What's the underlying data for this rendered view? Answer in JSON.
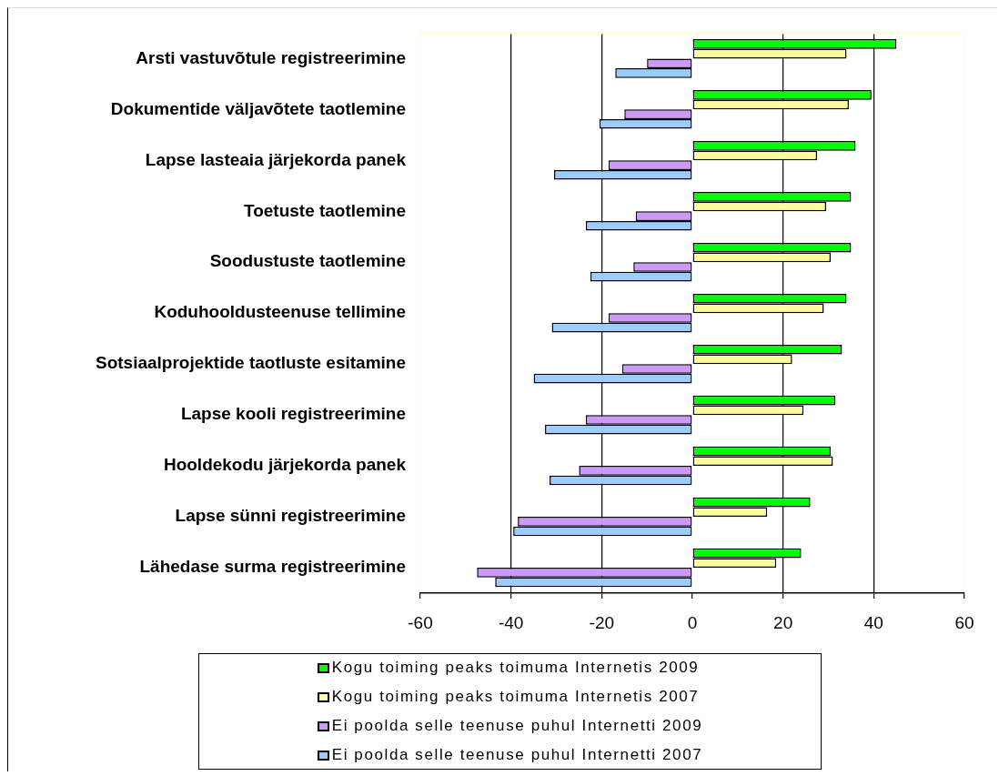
{
  "chart_data": {
    "type": "bar",
    "orientation": "horizontal",
    "categories": [
      "Arsti vastuvõtule registreerimine",
      "Dokumentide väljavõtete taotlemine",
      "Lapse lasteaia järjekorda panek",
      "Toetuste taotlemine",
      "Soodustuste taotlemine",
      "Koduhooldusteenuse tellimine",
      "Sotsiaalprojektide taotluste esitamine",
      "Lapse kooli registreerimine",
      "Hooldekodu järjekorda panek",
      "Lapse sünni registreerimine",
      "Lähedase surma registreerimine"
    ],
    "series": [
      {
        "name": "Kogu toiming peaks toimuma Internetis 2009",
        "color": "#00ff00",
        "values": [
          45,
          39.5,
          36,
          35,
          35,
          34,
          33,
          31.5,
          30.5,
          26,
          24
        ]
      },
      {
        "name": "Kogu toiming peaks toimuma Internetis 2007",
        "color": "#ffff99",
        "values": [
          34,
          34.5,
          27.5,
          29.5,
          30.5,
          29,
          22,
          24.5,
          31,
          16.5,
          18.5
        ]
      },
      {
        "name": "Ei poolda selle teenuse puhul Internetti 2009",
        "color": "#cc99ff",
        "values": [
          -10,
          -15,
          -18.5,
          -12.5,
          -13,
          -18.5,
          -15.5,
          -23.5,
          -25,
          -38.5,
          -47.5
        ]
      },
      {
        "name": "Ei poolda selle teenuse puhul Internetti 2007",
        "color": "#99ccff",
        "values": [
          -17,
          -20.5,
          -30.5,
          -23.5,
          -22.5,
          -31,
          -35,
          -32.5,
          -31.5,
          -39.5,
          -43.5
        ]
      }
    ],
    "xlim": [
      -60,
      60
    ],
    "xticks": [
      -60,
      -40,
      -20,
      0,
      20,
      40,
      60
    ],
    "grid": "x",
    "legend": "bottom"
  }
}
